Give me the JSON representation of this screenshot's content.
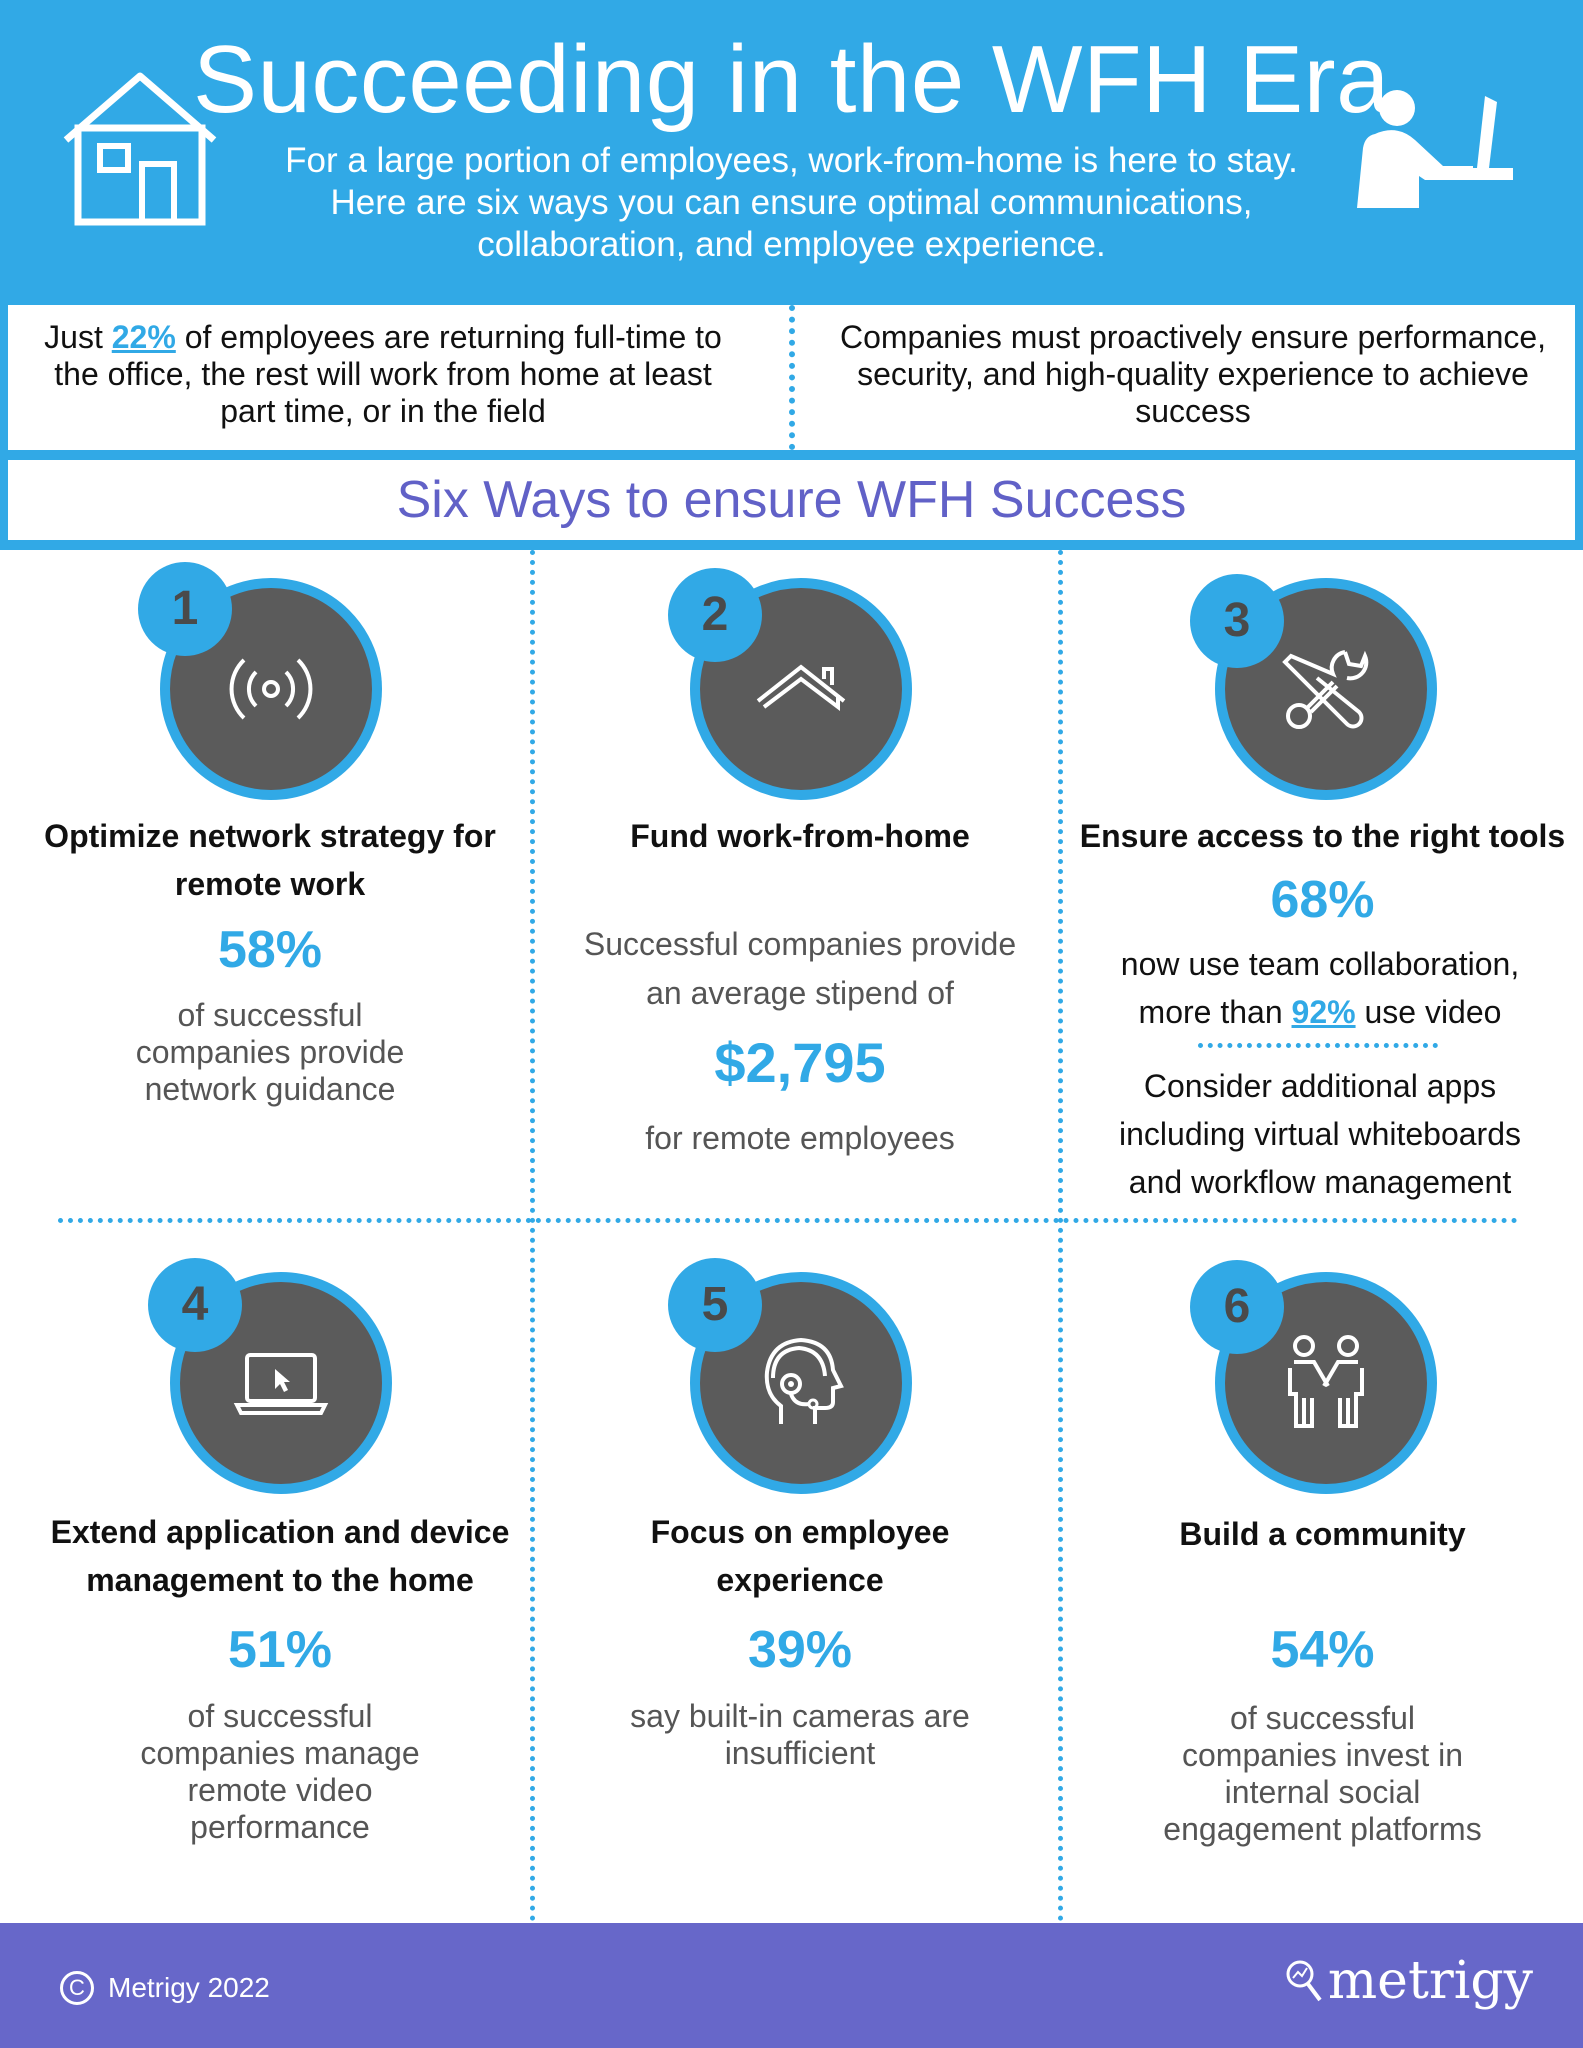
{
  "header": {
    "title": "Succeeding in the WFH Era",
    "subtitle": "For a large portion of employees, work-from-home is here to stay. Here are six ways you can ensure optimal communications, collaboration, and employee experience.",
    "left_icon": "house-icon",
    "right_icon": "person-at-computer-icon",
    "color": "#31a9e6"
  },
  "intro": {
    "left_prefix": "Just ",
    "left_stat": "22%",
    "left_suffix": " of employees are returning full-time to the office, the rest will work from home at least part time, or in the field",
    "right": "Companies must proactively ensure performance, security, and high-quality experience to achieve success"
  },
  "subhead": "Six Ways to ensure WFH Success",
  "ways": [
    {
      "number": "1",
      "icon": "wireless-signal-icon",
      "title": "Optimize network strategy for remote work",
      "stat": "58%",
      "desc": "of successful companies provide network guidance"
    },
    {
      "number": "2",
      "icon": "roof-icon",
      "title": "Fund work-from-home",
      "desc_before": "Successful companies provide an average stipend of",
      "stat": "$2,795",
      "desc_after": "for remote employees"
    },
    {
      "number": "3",
      "icon": "tools-icon",
      "title": "Ensure access to the right tools",
      "stat": "68%",
      "desc_line1": "now use team collaboration,",
      "desc_prefix": "more than ",
      "desc_stat": "92%",
      "desc_suffix": " use video",
      "desc_extra": "Consider additional apps including virtual whiteboards and workflow management"
    },
    {
      "number": "4",
      "icon": "laptop-icon",
      "title": "Extend application and device management to the home",
      "stat": "51%",
      "desc": "of successful companies manage remote video performance"
    },
    {
      "number": "5",
      "icon": "headset-icon",
      "title": "Focus on employee experience",
      "stat": "39%",
      "desc": "say built-in cameras are insufficient"
    },
    {
      "number": "6",
      "icon": "handshake-icon",
      "title": "Build a community",
      "stat": "54%",
      "desc": "of successful companies invest in internal social engagement platforms"
    }
  ],
  "footer": {
    "copyright": "Metrigy 2022",
    "logo": "metrigy",
    "color": "#6767c9"
  }
}
